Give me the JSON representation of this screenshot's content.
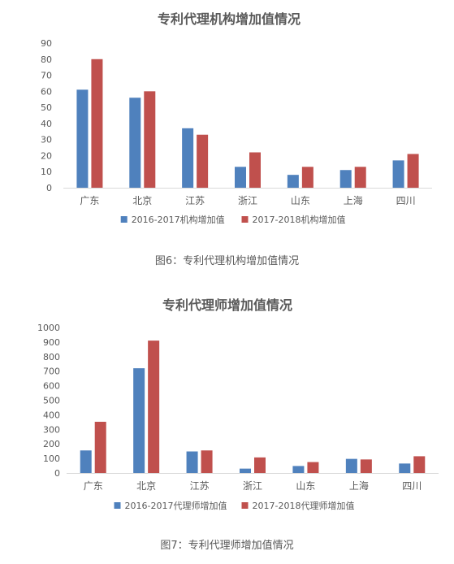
{
  "chart_data": [
    {
      "type": "bar",
      "title": "专利代理机构增加值情况",
      "categories": [
        "广东",
        "北京",
        "江苏",
        "浙江",
        "山东",
        "上海",
        "四川"
      ],
      "series": [
        {
          "name": "2016-2017机构增加值",
          "color": "#4f81bd",
          "values": [
            61,
            56,
            37,
            13,
            8,
            11,
            17
          ]
        },
        {
          "name": "2017-2018机构增加值",
          "color": "#c0504d",
          "values": [
            80,
            60,
            33,
            22,
            13,
            13,
            21
          ]
        }
      ],
      "yticks": [
        "0",
        "10",
        "20",
        "30",
        "40",
        "50",
        "60",
        "70",
        "80",
        "90"
      ],
      "ylim": [
        0,
        90
      ],
      "grid": false,
      "legend": "bottom"
    },
    {
      "type": "bar",
      "title": "专利代理师增加值情况",
      "categories": [
        "广东",
        "北京",
        "江苏",
        "浙江",
        "山东",
        "上海",
        "四川"
      ],
      "series": [
        {
          "name": "2016-2017代理师增加值",
          "color": "#4f81bd",
          "values": [
            155,
            720,
            148,
            30,
            48,
            97,
            65
          ]
        },
        {
          "name": "2017-2018代理师增加值",
          "color": "#c0504d",
          "values": [
            352,
            910,
            155,
            107,
            75,
            93,
            115
          ]
        }
      ],
      "yticks": [
        "0",
        "100",
        "200",
        "300",
        "400",
        "500",
        "600",
        "700",
        "800",
        "900",
        "1000"
      ],
      "ylim": [
        0,
        1000
      ],
      "grid": false,
      "legend": "bottom"
    }
  ],
  "captions": [
    "图6：专利代理机构增加值情况",
    "图7：专利代理师增加值情况"
  ]
}
